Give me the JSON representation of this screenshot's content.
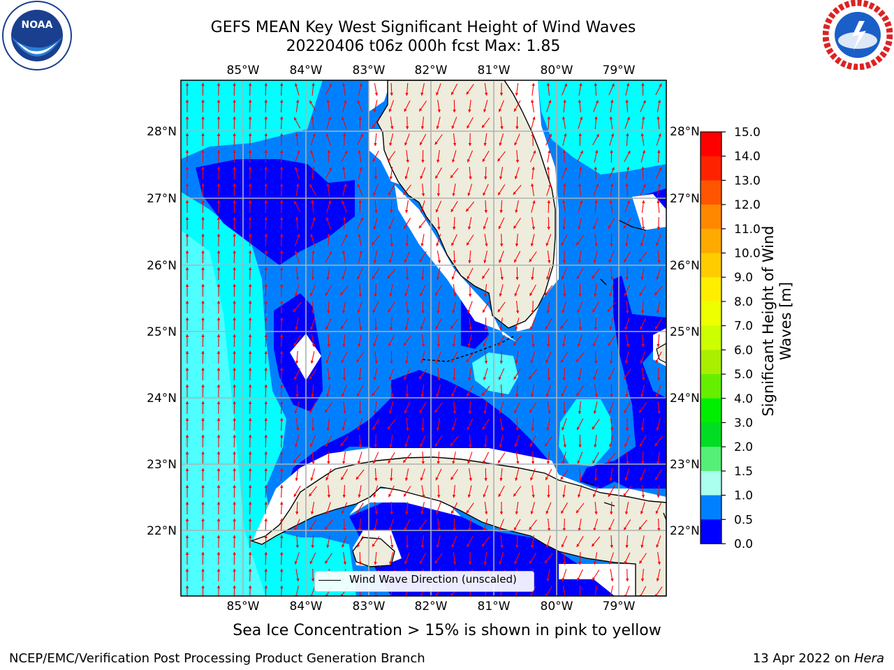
{
  "title": {
    "line1": "GEFS MEAN Key West Significant Height of Wind Waves",
    "line2": "20220406 t06z 000h fcst   Max: 1.85"
  },
  "map": {
    "lon_ticks": [
      "85°W",
      "84°W",
      "83°W",
      "82°W",
      "81°W",
      "80°W",
      "79°W"
    ],
    "lat_ticks": [
      "28°N",
      "27°N",
      "26°N",
      "25°N",
      "24°N",
      "23°N",
      "22°N"
    ],
    "extent": {
      "lon_min": -86.0,
      "lon_max": -78.2,
      "lat_min": 21.0,
      "lat_max": 28.75
    },
    "arrow_color": "#ff0000",
    "land_color": "#eeecdc",
    "legend_label": "Wind Wave Direction (unscaled)"
  },
  "colorbar": {
    "label": "Significant Height of Wind Waves [m]",
    "tick_labels": [
      "15.0",
      "14.0",
      "13.0",
      "12.0",
      "11.0",
      "10.0",
      "9.0",
      "8.0",
      "7.0",
      "6.0",
      "5.0",
      "4.0",
      "3.0",
      "2.0",
      "1.5",
      "1.0",
      "0.5",
      "0.0"
    ],
    "colors": [
      "#ff0000",
      "#ff2200",
      "#ff5500",
      "#ff8800",
      "#ffaa00",
      "#ffcc00",
      "#ffee00",
      "#eeff00",
      "#ccff00",
      "#aaee00",
      "#66ee00",
      "#00ee00",
      "#00dd22",
      "#55ee77",
      "#aaffee",
      "#55ffff",
      "#00ffff",
      "#0080ff",
      "#0000ff"
    ]
  },
  "chart_data": {
    "type": "heatmap",
    "title": "GEFS MEAN Key West Significant Height of Wind Waves",
    "subtitle": "20220406 t06z 000h fcst   Max: 1.85",
    "variable": "Significant Height of Wind Waves [m]",
    "max": 1.85,
    "levels": [
      0.0,
      0.5,
      1.0,
      1.5,
      2.0,
      3.0,
      4.0,
      5.0,
      6.0,
      7.0,
      8.0,
      9.0,
      10.0,
      11.0,
      12.0,
      13.0,
      14.0,
      15.0
    ],
    "xlim": [
      -86.0,
      -78.2
    ],
    "ylim": [
      21.0,
      28.75
    ]
  },
  "notes": {
    "sea_ice": "Sea Ice Concentration > 15% is shown in pink to yellow"
  },
  "footer": {
    "left": "NCEP/EMC/Verification Post Processing Product Generation Branch",
    "date": "13 Apr 2022 on",
    "machine": "Hera"
  },
  "logos": {
    "noaa": {
      "text": "NOAA",
      "ring_text": "NATIONAL OCEANIC AND ATMOSPHERIC ADMINISTRATION"
    },
    "nws": {
      "ring_text": "NATIONAL WEATHER SERVICE"
    }
  }
}
